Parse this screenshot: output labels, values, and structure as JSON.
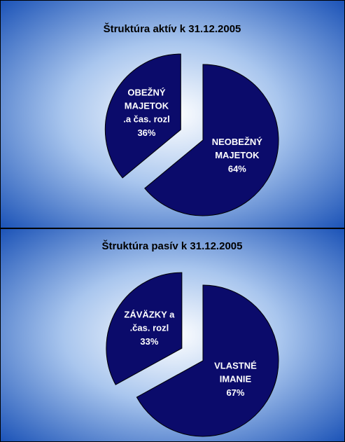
{
  "chart_data": [
    {
      "type": "pie",
      "title": "Štruktúra aktív k 31.12.2005",
      "categories": [
        "NEOBEŽNÝ\nMAJETOK",
        "OBEŽNÝ\nMAJETOK\n.a čas. rozl"
      ],
      "values": [
        64,
        36
      ],
      "value_labels": [
        "64%",
        "36%"
      ],
      "color": "#0b0b6b"
    },
    {
      "type": "pie",
      "title": "Štruktúra pasív k 31.12.2005",
      "categories": [
        "VLASTNÉ\nIMANIE",
        "ZÁVÄZKY a\n.čas. rozl"
      ],
      "values": [
        67,
        33
      ],
      "value_labels": [
        "67%",
        "33%"
      ],
      "color": "#0b0b6b"
    }
  ]
}
